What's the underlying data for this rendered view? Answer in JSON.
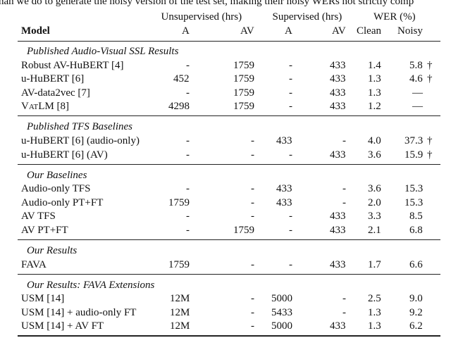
{
  "cutoff_text": "han we do to generate the noisy version of the test set, making their noisy WERs not strictly comp",
  "header": {
    "groups": [
      "Unsupervised (hrs)",
      "Supervised (hrs)",
      "WER (%)"
    ],
    "columns": [
      "Model",
      "A",
      "AV",
      "A",
      "AV",
      "Clean",
      "Noisy"
    ]
  },
  "sections": [
    {
      "title": "Published Audio-Visual SSL Results",
      "rows": [
        {
          "cells": [
            "Robust AV-HuBERT [4]",
            "-",
            "1759",
            "-",
            "433",
            "1.4",
            "5.8"
          ],
          "note": "†"
        },
        {
          "cells": [
            "u-HuBERT [6]",
            "452",
            "1759",
            "-",
            "433",
            "1.3",
            "4.6"
          ],
          "note": "†"
        },
        {
          "cells": [
            "AV-data2vec [7]",
            "-",
            "1759",
            "-",
            "433",
            "1.3",
            "—"
          ]
        },
        {
          "cells": [
            "VatLM [8]",
            "4298",
            "1759",
            "-",
            "433",
            "1.2",
            "—"
          ],
          "smallcaps": true
        }
      ]
    },
    {
      "title": "Published TFS Baselines",
      "rows": [
        {
          "cells": [
            "u-HuBERT [6] (audio-only)",
            "-",
            "-",
            "433",
            "-",
            "4.0",
            "37.3"
          ],
          "note": "†"
        },
        {
          "cells": [
            "u-HuBERT [6] (AV)",
            "-",
            "-",
            "-",
            "433",
            "3.6",
            "15.9"
          ],
          "note": "†"
        }
      ]
    },
    {
      "title": "Our Baselines",
      "rows": [
        {
          "cells": [
            "Audio-only TFS",
            "-",
            "-",
            "433",
            "-",
            "3.6",
            "15.3"
          ]
        },
        {
          "cells": [
            "Audio-only PT+FT",
            "1759",
            "-",
            "433",
            "-",
            "2.0",
            "15.3"
          ]
        },
        {
          "cells": [
            "AV TFS",
            "-",
            "-",
            "-",
            "433",
            "3.3",
            "8.5"
          ]
        },
        {
          "cells": [
            "AV PT+FT",
            "-",
            "1759",
            "-",
            "433",
            "2.1",
            "6.8"
          ]
        }
      ]
    },
    {
      "title": "Our Results",
      "rows": [
        {
          "cells": [
            "FAVA",
            "1759",
            "-",
            "-",
            "433",
            "1.7",
            "6.6"
          ]
        }
      ]
    },
    {
      "title": "Our Results: FAVA Extensions",
      "rows": [
        {
          "cells": [
            "USM [14]",
            "12M",
            "-",
            "5000",
            "-",
            "2.5",
            "9.0"
          ]
        },
        {
          "cells": [
            "USM [14] + audio-only FT",
            "12M",
            "-",
            "5433",
            "-",
            "1.3",
            "9.2"
          ]
        },
        {
          "cells": [
            "USM [14] + AV FT",
            "12M",
            "-",
            "5000",
            "433",
            "1.3",
            "6.2"
          ]
        }
      ]
    }
  ]
}
